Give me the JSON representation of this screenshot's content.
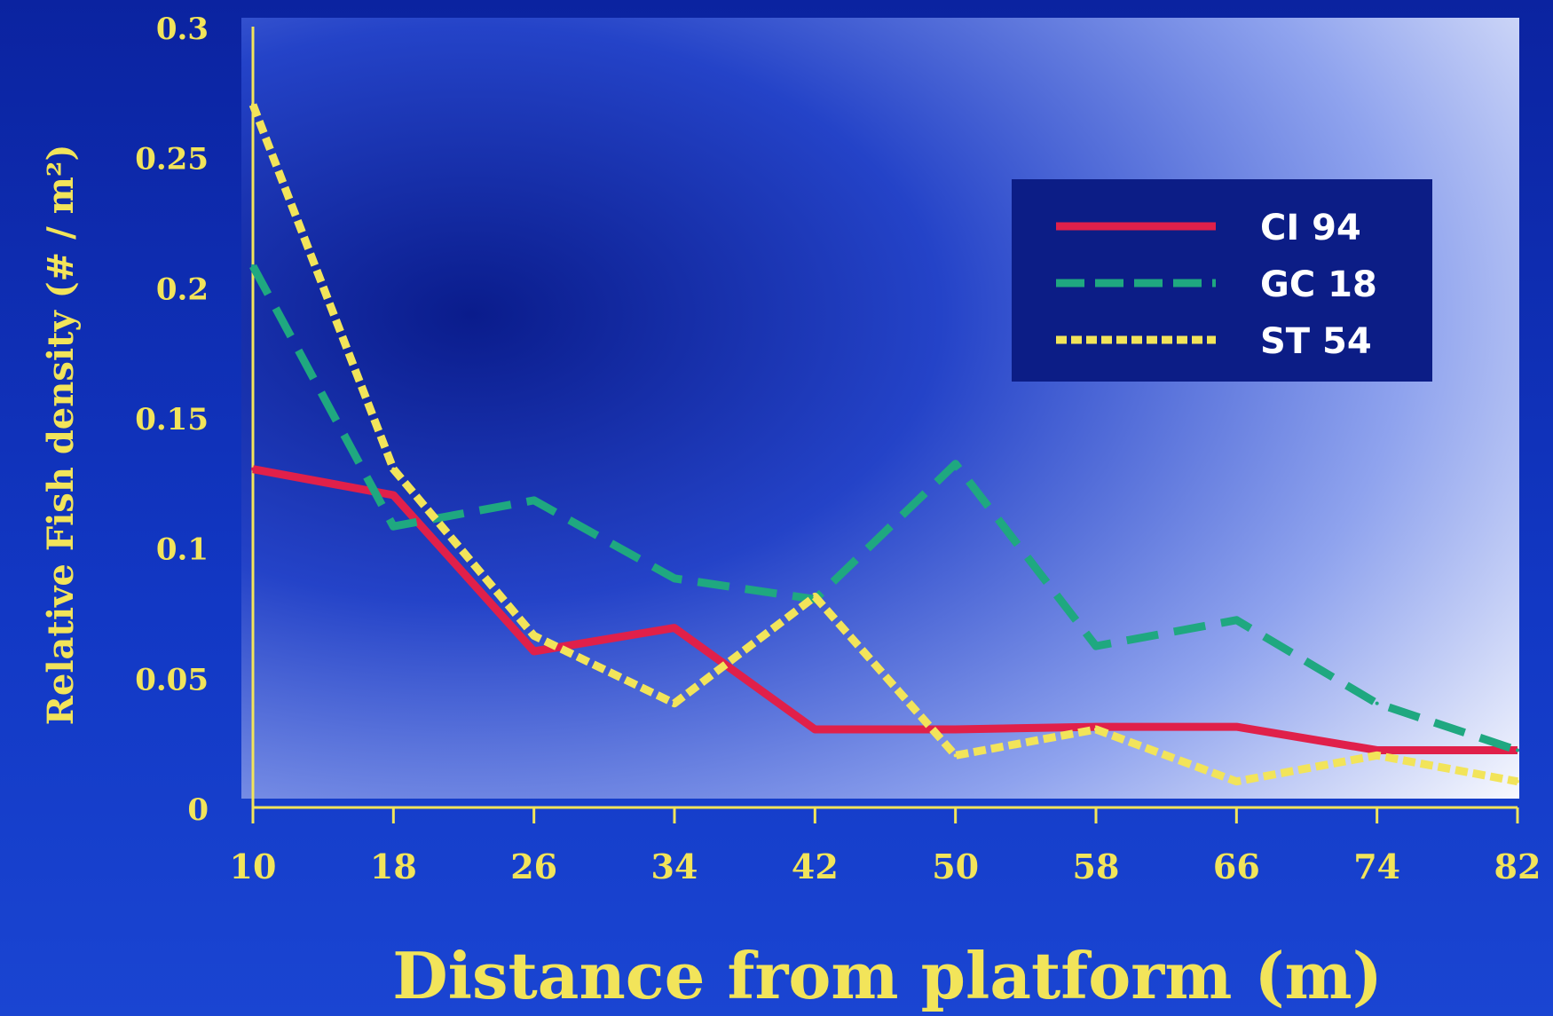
{
  "chart_data": {
    "type": "line",
    "xlabel": "Distance from platform (m)",
    "ylabel": "Relative Fish density (# / m²)",
    "x": [
      10,
      18,
      26,
      34,
      42,
      50,
      58,
      66,
      74,
      82
    ],
    "xlim": [
      10,
      82
    ],
    "ylim": [
      0,
      0.3
    ],
    "yticks": [
      0,
      0.05,
      0.1,
      0.15,
      0.2,
      0.25,
      0.3
    ],
    "ytick_labels": [
      "0",
      "0.05",
      "0.1",
      "0.15",
      "0.2",
      "0.25",
      "0.3"
    ],
    "xtick_labels": [
      "10",
      "18",
      "26",
      "34",
      "42",
      "50",
      "58",
      "66",
      "74",
      "82"
    ],
    "grid": false,
    "legend_position": "top-right",
    "series": [
      {
        "name": "CI 94",
        "color": "#e0204a",
        "dash": "solid",
        "values": [
          0.13,
          0.12,
          0.06,
          0.069,
          0.03,
          0.03,
          0.031,
          0.031,
          0.022,
          0.022
        ]
      },
      {
        "name": "GC 18",
        "color": "#1fa880",
        "dash": "dashed",
        "values": [
          0.208,
          0.108,
          0.118,
          0.088,
          0.08,
          0.132,
          0.062,
          0.072,
          0.04,
          0.022
        ]
      },
      {
        "name": "ST 54",
        "color": "#f2e45a",
        "dash": "dotted",
        "values": [
          0.27,
          0.13,
          0.066,
          0.04,
          0.081,
          0.02,
          0.03,
          0.01,
          0.02,
          0.01
        ]
      }
    ]
  }
}
